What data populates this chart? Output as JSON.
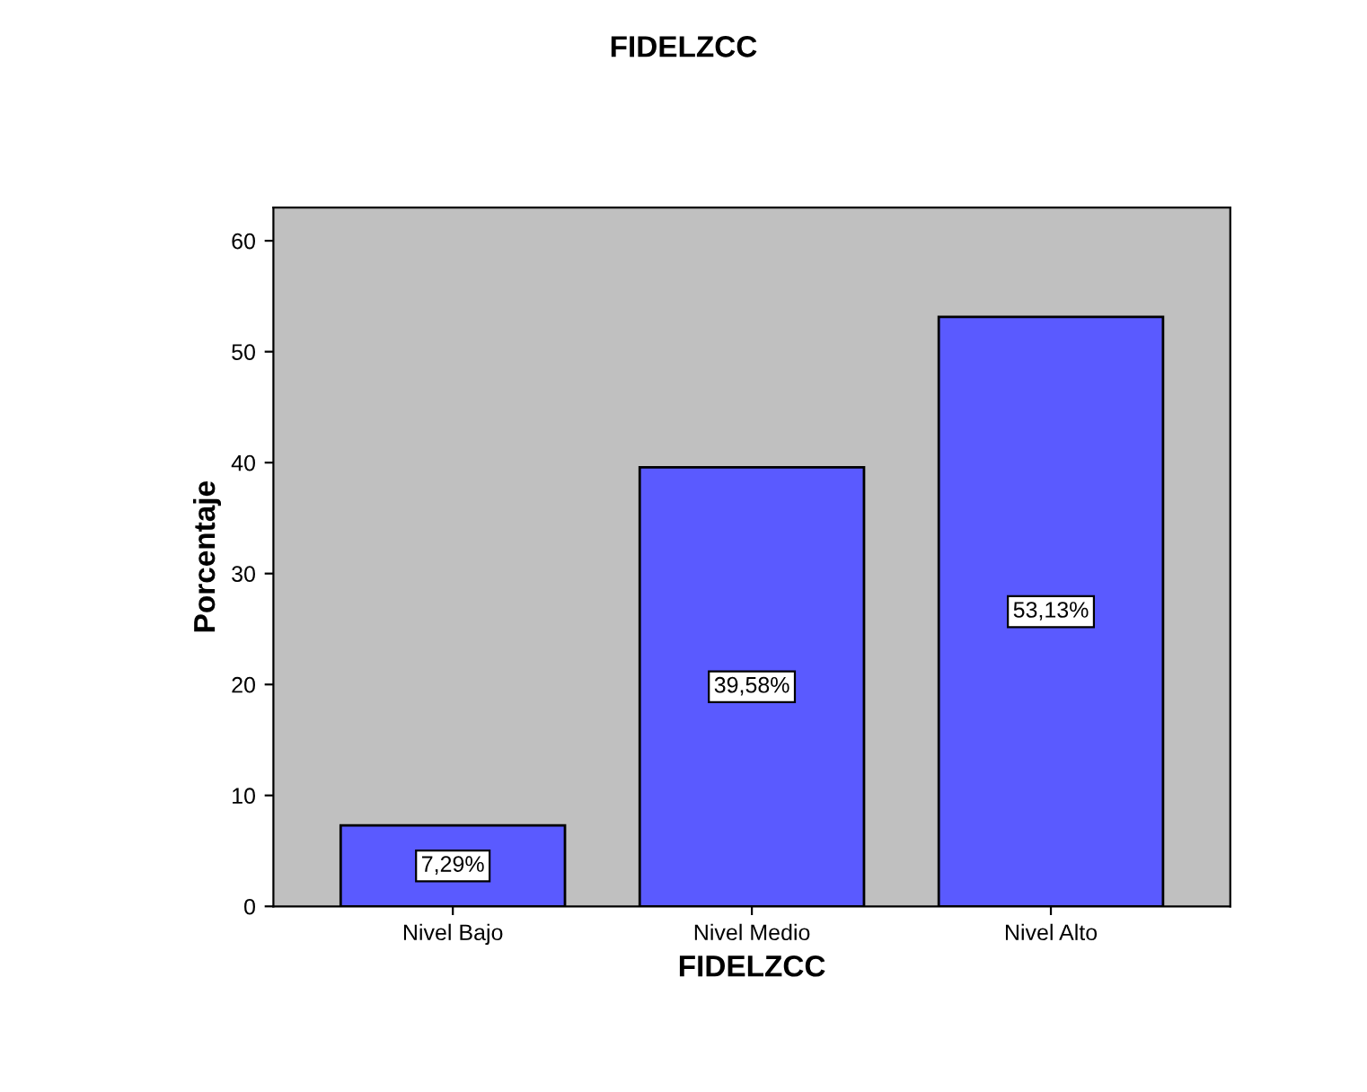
{
  "chart_data": {
    "type": "bar",
    "title": "FIDELZCC",
    "xlabel": "FIDELZCC",
    "ylabel": "Porcentaje",
    "categories": [
      "Nivel Bajo",
      "Nivel Medio",
      "Nivel Alto"
    ],
    "values": [
      7.29,
      39.58,
      53.13
    ],
    "value_labels": [
      "7,29%",
      "39,58%",
      "53,13%"
    ],
    "color": "#5a5aff",
    "ylim": [
      0,
      63
    ],
    "yticks": [
      0,
      10,
      20,
      30,
      40,
      50,
      60
    ],
    "grid": false
  }
}
